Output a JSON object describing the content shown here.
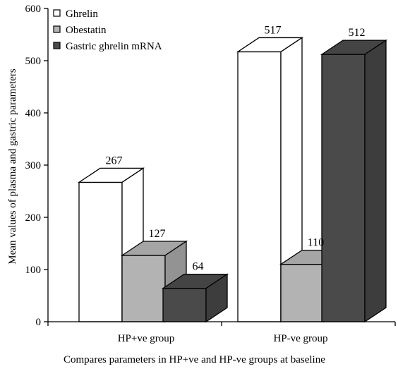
{
  "chart_data": {
    "type": "bar",
    "style": "3d-clustered",
    "categories": [
      "HP+ve group",
      "HP-ve group"
    ],
    "series": [
      {
        "name": "Ghrelin",
        "values": [
          267,
          517
        ],
        "color": "#ffffff"
      },
      {
        "name": "Obestatin",
        "values": [
          127,
          110
        ],
        "color": "#b3b3b3"
      },
      {
        "name": "Gastric ghrelin mRNA",
        "values": [
          64,
          512
        ],
        "color": "#4a4a4a"
      }
    ],
    "data_labels": [
      [
        "267",
        "127",
        "64"
      ],
      [
        "517",
        "110",
        "512"
      ]
    ],
    "xlabel": "Compares parameters in HP+ve and HP-ve groups at baseline",
    "ylabel": "Mean values of plasma and gastric parameters",
    "ylim": [
      0,
      600
    ],
    "yticks": [
      0,
      100,
      200,
      300,
      400,
      500,
      600
    ],
    "legend_position": "top-left",
    "grid": false
  }
}
